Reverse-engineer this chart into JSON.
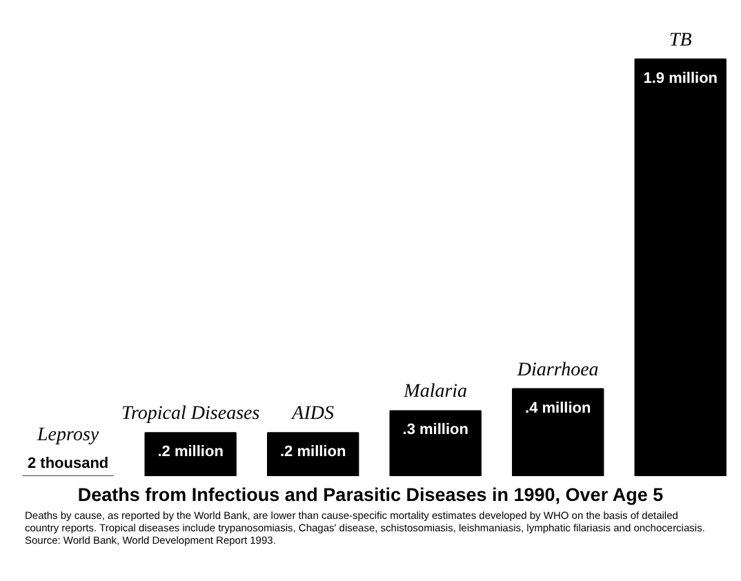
{
  "chart_data": {
    "type": "bar",
    "title": "Deaths from Infectious and Parasitic Diseases in 1990, Over Age 5",
    "categories": [
      "Leprosy",
      "Tropical Diseases",
      "AIDS",
      "Malaria",
      "Diarrhoea",
      "TB"
    ],
    "values": [
      2000,
      200000,
      200000,
      300000,
      400000,
      1900000
    ],
    "value_labels": [
      "2 thousand",
      ".2 million",
      ".2 million",
      ".3 million",
      ".4 million",
      "1.9 million"
    ],
    "color": "#000000",
    "annotations": [
      "Deaths by cause, as reported by the World Bank, are lower than cause-specific mortality estimates developed by WHO on the basis of detailed country reports. Tropical diseases include trypanosomiasis, Chagas' disease, schistosomiasis, leishmaniasis, lymphatic filariasis and onchocerciasis. Source: World Bank, World Development Report 1993."
    ],
    "grid": false
  }
}
